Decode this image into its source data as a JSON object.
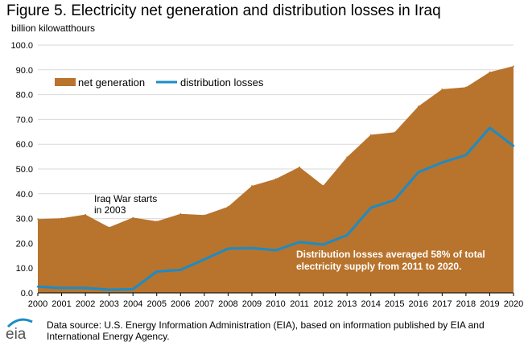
{
  "header": {
    "title": "Figure 5. Electricity net generation and distribution losses in Iraq",
    "units": "billion kilowatthours"
  },
  "chart_data": {
    "type": "area",
    "x": [
      2000,
      2001,
      2002,
      2003,
      2004,
      2005,
      2006,
      2007,
      2008,
      2009,
      2010,
      2011,
      2012,
      2013,
      2014,
      2015,
      2016,
      2017,
      2018,
      2019,
      2020
    ],
    "series": [
      {
        "name": "net generation",
        "kind": "area",
        "color": "#b8732c",
        "values": [
          29.8,
          30.1,
          31.6,
          26.5,
          30.4,
          28.9,
          31.9,
          31.4,
          34.8,
          43.2,
          46.0,
          50.8,
          43.3,
          54.8,
          63.8,
          64.8,
          75.3,
          82.2,
          83.0,
          89.1,
          91.5
        ]
      },
      {
        "name": "distribution losses",
        "kind": "line",
        "color": "#1b8cc6",
        "values": [
          2.5,
          2.0,
          2.0,
          1.3,
          1.5,
          8.6,
          9.3,
          13.5,
          17.9,
          18.1,
          17.2,
          20.5,
          19.5,
          23.3,
          34.3,
          37.5,
          48.7,
          52.6,
          55.6,
          66.6,
          59.3
        ]
      }
    ],
    "y_ticks": [
      "0.0",
      "10.0",
      "20.0",
      "30.0",
      "40.0",
      "50.0",
      "60.0",
      "70.0",
      "80.0",
      "90.0",
      "100.0"
    ],
    "ylim": [
      0,
      100
    ],
    "annotations": [
      {
        "id": "iraq-war",
        "lines": [
          "Iraq War starts",
          "in 2003"
        ]
      },
      {
        "id": "losses-note",
        "lines": [
          "Distribution losses averaged 58% of total",
          "electricity supply from 2011 to 2020."
        ]
      }
    ],
    "legend_position": "top-left",
    "grid": true
  },
  "footer": {
    "logo_text": "eia",
    "source": "Data source: U.S. Energy Information Administration (EIA), based on information published by EIA and International Energy Agency."
  }
}
